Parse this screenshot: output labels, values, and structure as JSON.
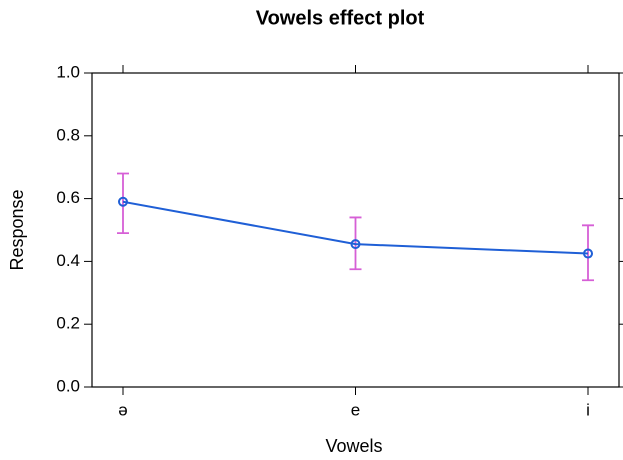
{
  "chart_data": {
    "type": "line",
    "title": "Vowels effect plot",
    "x_label": "Vowels",
    "y_label": "Response",
    "categories": [
      "ə",
      "e",
      "i"
    ],
    "series": [
      {
        "values": [
          0.59,
          0.455,
          0.425
        ],
        "lower": [
          0.49,
          0.375,
          0.34
        ],
        "upper": [
          0.68,
          0.54,
          0.515
        ],
        "color": "#1f5fd6",
        "error_color": "#d65fd6"
      }
    ],
    "ylim": [
      0,
      1
    ],
    "yticks": [
      {
        "value": 0,
        "label": "0.0"
      },
      {
        "value": 0.2,
        "label": "0.2"
      },
      {
        "value": 0.4,
        "label": "0.4"
      },
      {
        "value": 0.6,
        "label": "0.6"
      },
      {
        "value": 0.8,
        "label": "0.8"
      },
      {
        "value": 1,
        "label": "1.0"
      }
    ]
  }
}
